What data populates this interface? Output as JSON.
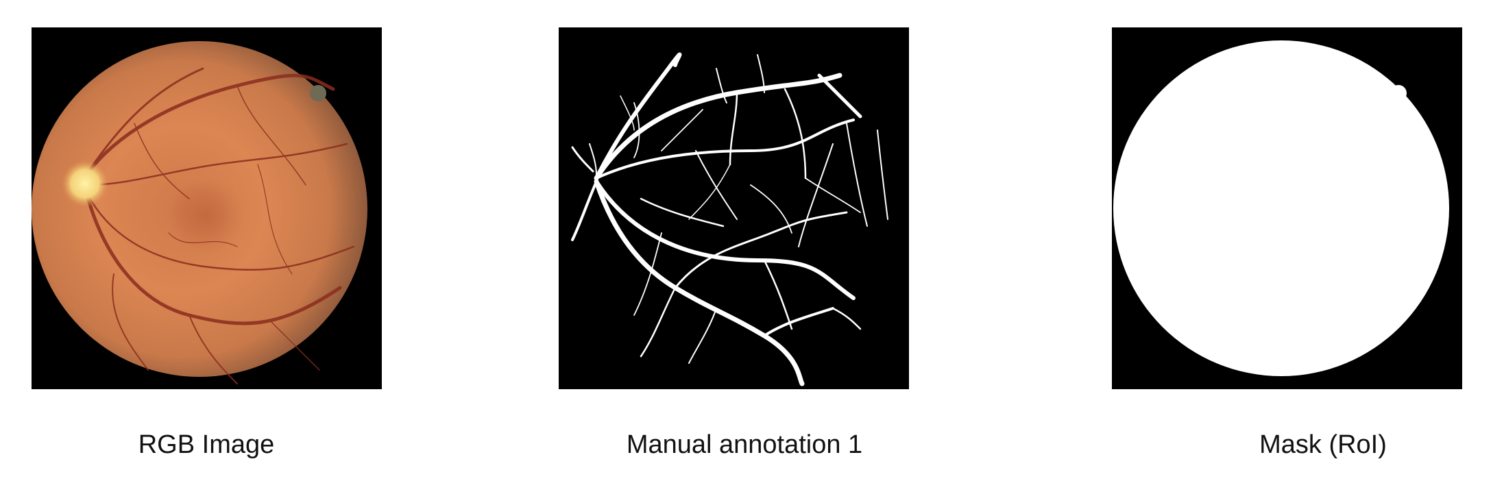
{
  "panels": [
    {
      "caption": "RGB Image"
    },
    {
      "caption": "Manual annotation 1"
    },
    {
      "caption": "Mask (RoI)"
    }
  ],
  "colors": {
    "background": "#ffffff",
    "panel_background": "#000000",
    "fundus_orange": "#d9834e",
    "optic_disc": "#f7e38a",
    "vessel_dark": "#8a2d1e",
    "annotation_vessel": "#ffffff",
    "mask_fill": "#ffffff"
  }
}
